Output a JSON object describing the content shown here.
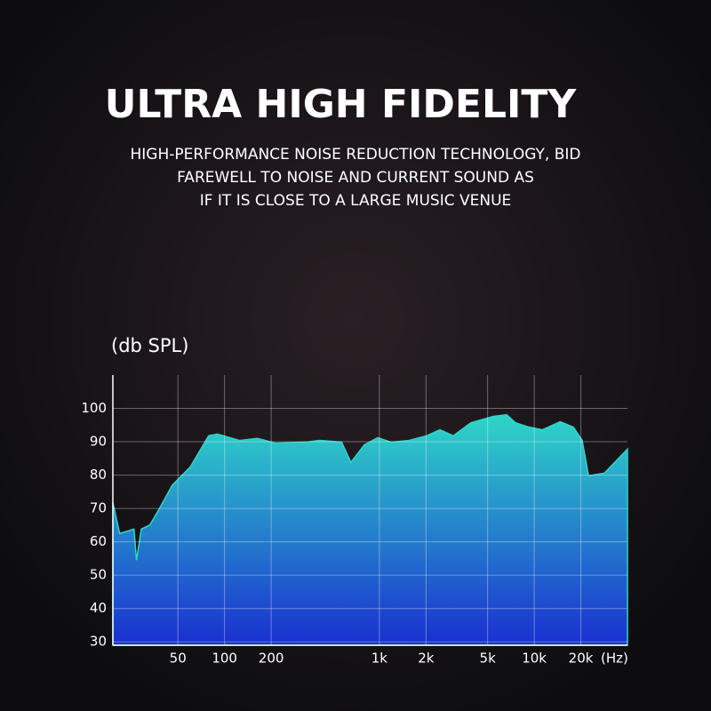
{
  "chart_data": {
    "type": "area",
    "title": "ULTRA HIGH FIDELITY",
    "subtitle": [
      "HIGH-PERFORMANCE NOISE REDUCTION TECHNOLOGY, BID",
      "FAREWELL TO NOISE AND CURRENT SOUND AS",
      "IF IT IS CLOSE TO A LARGE MUSIC VENUE"
    ],
    "y_label": "(db SPL)",
    "x_label": "(Hz)",
    "x": [
      19,
      21,
      26,
      27,
      29,
      33,
      38,
      46,
      60,
      79,
      90,
      125,
      163,
      213,
      340,
      410,
      570,
      655,
      800,
      975,
      1190,
      1550,
      2020,
      2460,
      3000,
      3900,
      5440,
      6630,
      7570,
      9240,
      11300,
      14700,
      17900,
      20400,
      22400,
      28400,
      40000
    ],
    "values": [
      71.8,
      62.5,
      63.8,
      54.5,
      63.8,
      65.1,
      70,
      77,
      82.4,
      91.8,
      92.3,
      90.4,
      91,
      89.6,
      89.9,
      90.4,
      89.9,
      83.8,
      89.1,
      91.2,
      89.9,
      90.4,
      91.8,
      93.6,
      91.8,
      95.7,
      97.6,
      98.1,
      95.7,
      94.4,
      93.6,
      96,
      94.4,
      90.4,
      79.8,
      80.6,
      87.8
    ],
    "color_top": "#2fd6c8",
    "color_bottom": "#1a2fd0",
    "xscale": "log",
    "xlim": [
      19,
      40000
    ],
    "ylim": [
      29,
      110
    ],
    "xticks": [
      50,
      100,
      200,
      {
        "value": 1000,
        "label": "1k"
      },
      {
        "value": 2000,
        "label": "2k"
      },
      {
        "value": 5000,
        "label": "5k"
      },
      {
        "value": 10000,
        "label": "10k"
      },
      {
        "value": 20000,
        "label": "20k"
      }
    ],
    "yticks": [
      30,
      40,
      50,
      60,
      70,
      80,
      90,
      100
    ],
    "grid": true
  }
}
